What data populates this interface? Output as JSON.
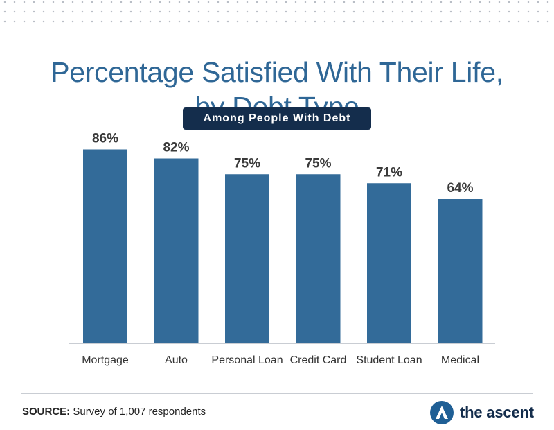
{
  "header": {
    "title_line1": "Percentage Satisfied With Their Life,",
    "title_line2": "by Debt Type",
    "subtitle": "Among People With Debt"
  },
  "chart_data": {
    "type": "bar",
    "title": "Percentage Satisfied With Their Life, by Debt Type",
    "subtitle": "Among People With Debt",
    "categories": [
      "Mortgage",
      "Auto",
      "Personal Loan",
      "Credit Card",
      "Student Loan",
      "Medical"
    ],
    "values": [
      86,
      82,
      75,
      75,
      71,
      64
    ],
    "value_labels": [
      "86%",
      "82%",
      "75%",
      "75%",
      "71%",
      "64%"
    ],
    "xlabel": "",
    "ylabel": "",
    "ylim": [
      0,
      100
    ],
    "grid": false,
    "legend": "none",
    "bar_color": "#336b99"
  },
  "footer": {
    "source_label": "SOURCE:",
    "source_text": "Survey of 1,007 respondents",
    "brand_name": "the ascent",
    "brand_color": "#1f5f95"
  },
  "icons": {
    "brand": "ascent-logo-icon"
  }
}
